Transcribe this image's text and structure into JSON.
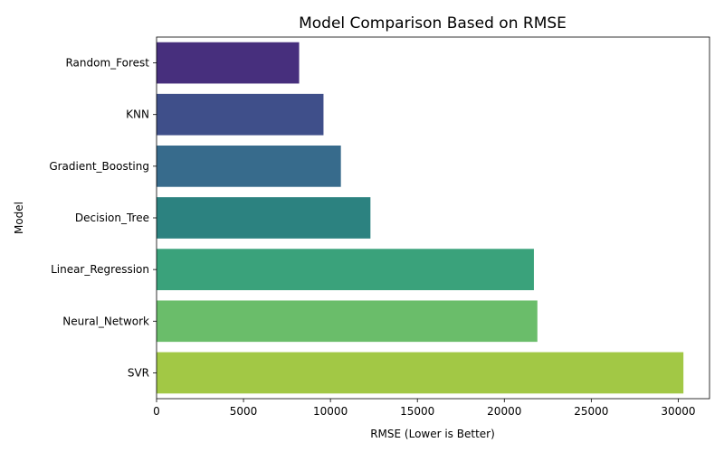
{
  "chart_data": {
    "type": "bar",
    "orientation": "horizontal",
    "title": "Model Comparison Based on RMSE",
    "xlabel": "RMSE (Lower is Better)",
    "ylabel": "Model",
    "categories": [
      "Random_Forest",
      "KNN",
      "Gradient_Boosting",
      "Decision_Tree",
      "Linear_Regression",
      "Neural_Network",
      "SVR"
    ],
    "values": [
      8200,
      9600,
      10600,
      12300,
      21700,
      21900,
      30300
    ],
    "colors": [
      "#472f7d",
      "#3f4f8a",
      "#376b8c",
      "#2c8280",
      "#3aa27b",
      "#6abd6a",
      "#a2c845"
    ],
    "xlim": [
      0,
      31800
    ],
    "xticks": [
      0,
      5000,
      10000,
      15000,
      20000,
      25000,
      30000
    ],
    "grid": false,
    "legend": "none"
  }
}
